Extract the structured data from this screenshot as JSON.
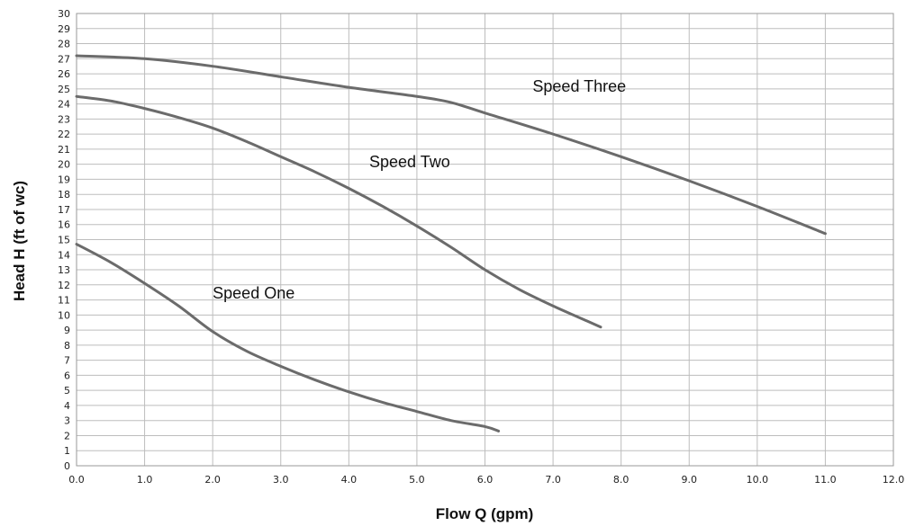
{
  "chart_data": {
    "type": "line",
    "title": "",
    "xlabel": "Flow Q (gpm)",
    "ylabel": "Head H (ft of wc)",
    "xlim": [
      0,
      12
    ],
    "ylim": [
      0,
      30
    ],
    "x_ticks": [
      "0.0",
      "1.0",
      "2.0",
      "3.0",
      "4.0",
      "5.0",
      "6.0",
      "7.0",
      "8.0",
      "9.0",
      "10.0",
      "11.0",
      "12.0"
    ],
    "y_ticks": [
      "0",
      "1",
      "2",
      "3",
      "4",
      "5",
      "6",
      "7",
      "8",
      "9",
      "10",
      "11",
      "12",
      "13",
      "14",
      "15",
      "16",
      "17",
      "18",
      "19",
      "20",
      "21",
      "22",
      "23",
      "24",
      "25",
      "26",
      "27",
      "28",
      "29",
      "30"
    ],
    "grid": true,
    "legend": "none",
    "line_color": "#6b6b6b",
    "series": [
      {
        "name": "Speed One",
        "points": [
          [
            0,
            14.7
          ],
          [
            0.5,
            13.5
          ],
          [
            1,
            12.1
          ],
          [
            1.5,
            10.6
          ],
          [
            2,
            8.9
          ],
          [
            2.5,
            7.6
          ],
          [
            3,
            6.6
          ],
          [
            3.5,
            5.7
          ],
          [
            4,
            4.9
          ],
          [
            4.5,
            4.2
          ],
          [
            5,
            3.6
          ],
          [
            5.5,
            3.0
          ],
          [
            6,
            2.6
          ],
          [
            6.2,
            2.3
          ]
        ]
      },
      {
        "name": "Speed Two",
        "points": [
          [
            0,
            24.5
          ],
          [
            0.5,
            24.2
          ],
          [
            1,
            23.7
          ],
          [
            1.5,
            23.1
          ],
          [
            2,
            22.4
          ],
          [
            2.5,
            21.5
          ],
          [
            3,
            20.5
          ],
          [
            3.5,
            19.5
          ],
          [
            4,
            18.4
          ],
          [
            4.5,
            17.2
          ],
          [
            5,
            15.9
          ],
          [
            5.5,
            14.5
          ],
          [
            6,
            13.0
          ],
          [
            6.5,
            11.7
          ],
          [
            7,
            10.6
          ],
          [
            7.5,
            9.6
          ],
          [
            7.7,
            9.2
          ]
        ]
      },
      {
        "name": "Speed Three",
        "points": [
          [
            0,
            27.2
          ],
          [
            1,
            27.0
          ],
          [
            2,
            26.5
          ],
          [
            3,
            25.8
          ],
          [
            4,
            25.1
          ],
          [
            5,
            24.5
          ],
          [
            5.5,
            24.1
          ],
          [
            6,
            23.4
          ],
          [
            7,
            22.0
          ],
          [
            8,
            20.5
          ],
          [
            9,
            18.9
          ],
          [
            10,
            17.2
          ],
          [
            11,
            15.4
          ]
        ]
      }
    ],
    "annotations": [
      {
        "text": "Speed Three",
        "x": 6.7,
        "y": 24.8
      },
      {
        "text": "Speed Two",
        "x": 4.3,
        "y": 19.8
      },
      {
        "text": "Speed One",
        "x": 2.0,
        "y": 11.1
      }
    ]
  }
}
